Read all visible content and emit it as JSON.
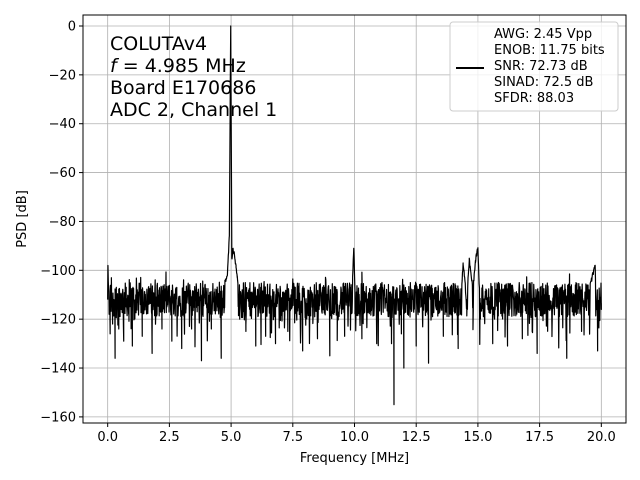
{
  "chart_data": {
    "type": "line",
    "xlabel": "Frequency [MHz]",
    "ylabel": "PSD [dB]",
    "xlim": [
      -1.0,
      21.0
    ],
    "ylim": [
      -162.5,
      4.5
    ],
    "x_ticks": [
      0.0,
      2.5,
      5.0,
      7.5,
      10.0,
      12.5,
      15.0,
      17.5,
      20.0
    ],
    "x_tick_labels": [
      "0.0",
      "2.5",
      "5.0",
      "7.5",
      "10.0",
      "12.5",
      "15.0",
      "17.5",
      "20.0"
    ],
    "y_ticks": [
      0,
      -20,
      -40,
      -60,
      -80,
      -100,
      -120,
      -140,
      -160
    ],
    "y_tick_labels": [
      "0",
      "−20",
      "−40",
      "−60",
      "−80",
      "−100",
      "−120",
      "−140",
      "−160"
    ],
    "grid": true,
    "line_color": "#000000",
    "annotation": {
      "chip": "COLUTAv4",
      "freq_symbol": "f",
      "freq_value": " = 4.985 MHz",
      "board": "Board E170686",
      "adc": "ADC 2, Channel 1"
    },
    "legend": {
      "placement": "top-right",
      "entries": [
        "AWG: 2.45 Vpp",
        "ENOB: 11.75 bits",
        "SNR: 72.73 dB",
        "SINAD: 72.5 dB",
        "SFDR: 88.03"
      ]
    },
    "noise_floor_db": -112,
    "series": [
      {
        "points": [
          [
            0.0,
            -112
          ],
          [
            0.01,
            -98
          ],
          [
            0.03,
            -106
          ],
          [
            0.06,
            -118
          ],
          [
            0.1,
            -126
          ],
          [
            0.15,
            -104
          ],
          [
            0.2,
            -122
          ],
          [
            0.25,
            -112
          ],
          [
            0.3,
            -136
          ],
          [
            0.35,
            -107
          ],
          [
            0.45,
            -124
          ],
          [
            0.55,
            -110
          ],
          [
            0.65,
            -129
          ],
          [
            0.75,
            -107
          ],
          [
            0.85,
            -118
          ],
          [
            1.0,
            -131
          ],
          [
            1.2,
            -108
          ],
          [
            1.4,
            -127
          ],
          [
            1.6,
            -112
          ],
          [
            1.8,
            -134
          ],
          [
            2.0,
            -106
          ],
          [
            2.2,
            -124
          ],
          [
            2.4,
            -110
          ],
          [
            2.6,
            -129
          ],
          [
            2.8,
            -107
          ],
          [
            3.0,
            -132
          ],
          [
            3.2,
            -111
          ],
          [
            3.4,
            -124
          ],
          [
            3.6,
            -108
          ],
          [
            3.8,
            -137
          ],
          [
            4.0,
            -109
          ],
          [
            4.2,
            -124
          ],
          [
            4.4,
            -112
          ],
          [
            4.6,
            -136
          ],
          [
            4.75,
            -105
          ],
          [
            4.85,
            -102
          ],
          [
            4.93,
            -86
          ],
          [
            4.97,
            -20
          ],
          [
            4.985,
            0
          ],
          [
            5.0,
            -30
          ],
          [
            5.03,
            -95
          ],
          [
            5.08,
            -91
          ],
          [
            5.12,
            -93
          ],
          [
            5.2,
            -98
          ],
          [
            5.25,
            -103
          ],
          [
            5.3,
            -110
          ],
          [
            5.35,
            -120
          ],
          [
            5.45,
            -108
          ],
          [
            5.6,
            -125
          ],
          [
            5.8,
            -109
          ],
          [
            6.0,
            -131
          ],
          [
            6.2,
            -107
          ],
          [
            6.4,
            -127
          ],
          [
            6.6,
            -112
          ],
          [
            6.8,
            -130
          ],
          [
            7.0,
            -108
          ],
          [
            7.3,
            -125
          ],
          [
            7.6,
            -107
          ],
          [
            7.9,
            -133
          ],
          [
            8.2,
            -110
          ],
          [
            8.5,
            -128
          ],
          [
            8.8,
            -107
          ],
          [
            9.0,
            -135
          ],
          [
            9.3,
            -109
          ],
          [
            9.6,
            -127
          ],
          [
            9.9,
            -110
          ],
          [
            9.97,
            -91
          ],
          [
            10.02,
            -108
          ],
          [
            10.3,
            -128
          ],
          [
            10.6,
            -109
          ],
          [
            10.9,
            -130
          ],
          [
            11.2,
            -108
          ],
          [
            11.5,
            -130
          ],
          [
            11.6,
            -155
          ],
          [
            11.62,
            -115
          ],
          [
            11.9,
            -126
          ],
          [
            12.0,
            -140
          ],
          [
            12.2,
            -108
          ],
          [
            12.5,
            -131
          ],
          [
            12.8,
            -109
          ],
          [
            13.0,
            -138
          ],
          [
            13.3,
            -107
          ],
          [
            13.6,
            -127
          ],
          [
            13.9,
            -110
          ],
          [
            14.2,
            -132
          ],
          [
            14.4,
            -97
          ],
          [
            14.55,
            -112
          ],
          [
            14.65,
            -96
          ],
          [
            14.8,
            -108
          ],
          [
            14.9,
            -96
          ],
          [
            15.0,
            -91
          ],
          [
            15.1,
            -120
          ],
          [
            15.3,
            -110
          ],
          [
            15.6,
            -130
          ],
          [
            15.9,
            -108
          ],
          [
            16.2,
            -131
          ],
          [
            16.5,
            -109
          ],
          [
            16.8,
            -128
          ],
          [
            17.1,
            -107
          ],
          [
            17.4,
            -134
          ],
          [
            17.7,
            -110
          ],
          [
            18.0,
            -125
          ],
          [
            18.3,
            -108
          ],
          [
            18.6,
            -136
          ],
          [
            18.9,
            -110
          ],
          [
            19.2,
            -125
          ],
          [
            19.5,
            -108
          ],
          [
            19.75,
            -98
          ],
          [
            19.85,
            -133
          ],
          [
            19.92,
            -110
          ],
          [
            20.0,
            -116
          ]
        ]
      }
    ]
  }
}
